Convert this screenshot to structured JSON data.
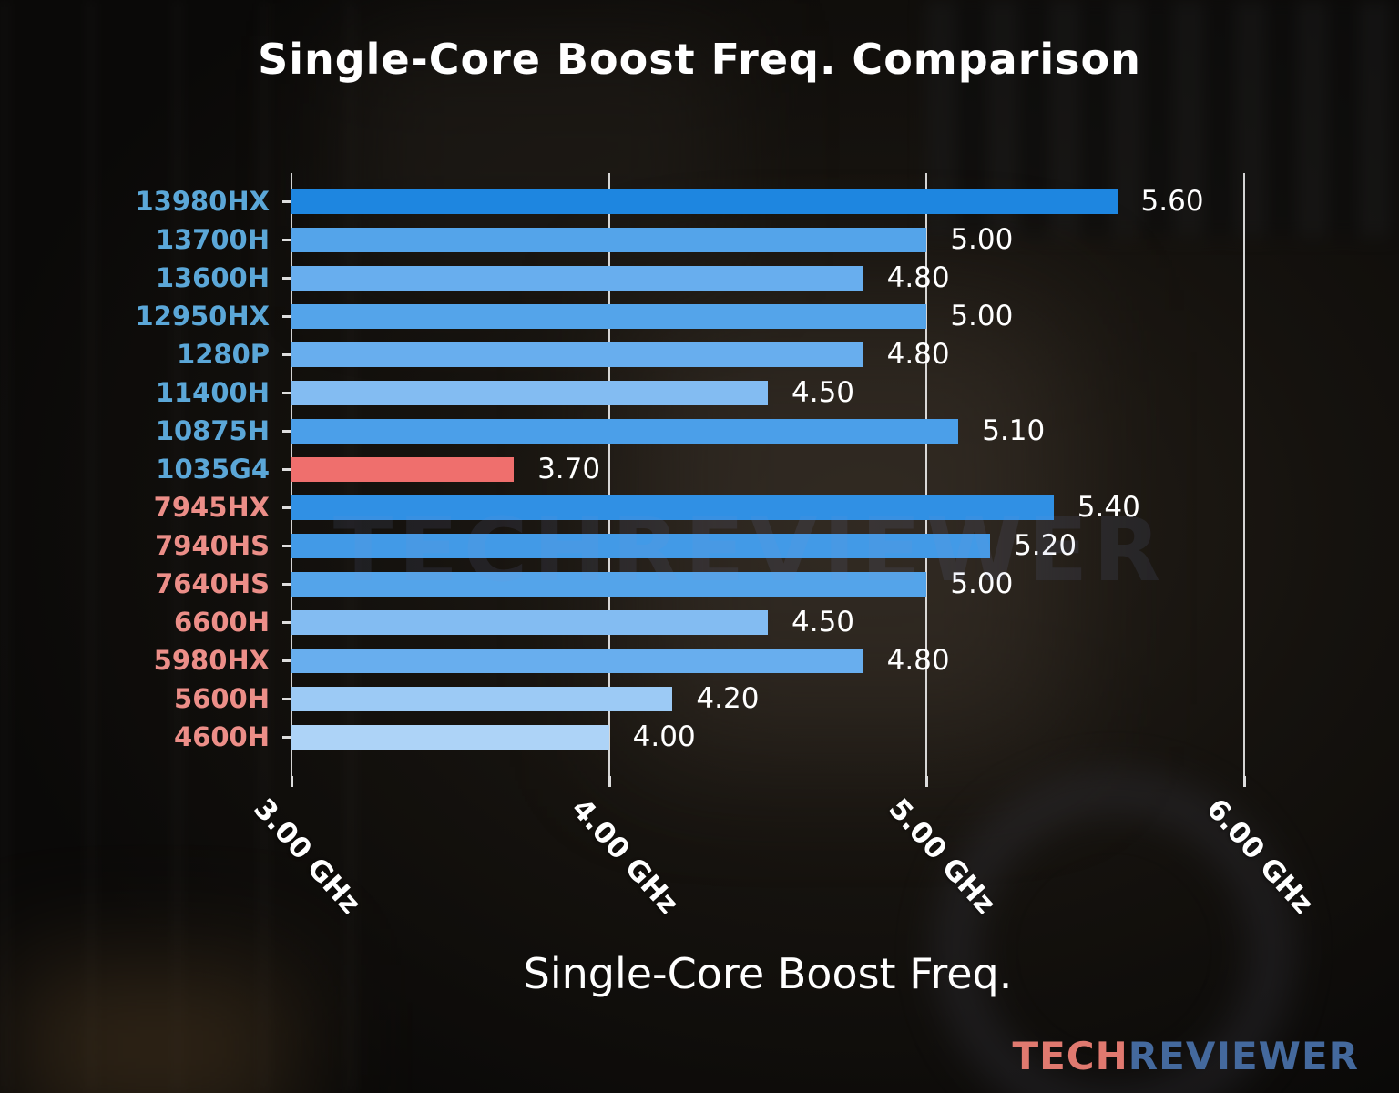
{
  "title": "Single-Core Boost Freq. Comparison",
  "watermark": "TECHREVIEWER",
  "logo": {
    "part1": "TECH",
    "part2": "REVIEWER",
    "part1_color": "#e0796f",
    "part2_color": "#44699d"
  },
  "colors": {
    "background": "#0c0b0a",
    "title": "#ffffff",
    "value_label": "#ffffff",
    "gridline": "rgba(255,255,255,0.82)",
    "intel_label": "#5ba7d8",
    "amd_label": "#ec8e88",
    "highlight_bar": "#ef6f6d"
  },
  "chart_data": {
    "type": "bar",
    "orientation": "horizontal",
    "title": "Single-Core Boost Freq. Comparison",
    "xlabel": "Single-Core Boost Freq.",
    "xlim": [
      3.0,
      6.0
    ],
    "grid": true,
    "unit": "GHz",
    "categories": [
      "13980HX",
      "13700H",
      "13600H",
      "12950HX",
      "1280P",
      "11400H",
      "10875H",
      "1035G4",
      "7945HX",
      "7940HS",
      "7640HS",
      "6600H",
      "5980HX",
      "5600H",
      "4600H"
    ],
    "values": [
      5.6,
      5.0,
      4.8,
      5.0,
      4.8,
      4.5,
      5.1,
      3.7,
      5.4,
      5.2,
      5.0,
      4.5,
      4.8,
      4.2,
      4.0
    ],
    "ticks": [
      {
        "value": 3.0,
        "label": "3.00 GHz"
      },
      {
        "value": 4.0,
        "label": "4.00 GHz"
      },
      {
        "value": 5.0,
        "label": "5.00 GHz"
      },
      {
        "value": 6.0,
        "label": "6.00 GHz"
      }
    ],
    "bars": [
      {
        "label": "13980HX",
        "value": 5.6,
        "display": "5.60",
        "vendor": "intel",
        "label_color": "#5ba7d8",
        "bar_color": "#1e86e0"
      },
      {
        "label": "13700H",
        "value": 5.0,
        "display": "5.00",
        "vendor": "intel",
        "label_color": "#5ba7d8",
        "bar_color": "#54a4ea"
      },
      {
        "label": "13600H",
        "value": 4.8,
        "display": "4.80",
        "vendor": "intel",
        "label_color": "#5ba7d8",
        "bar_color": "#68aeee"
      },
      {
        "label": "12950HX",
        "value": 5.0,
        "display": "5.00",
        "vendor": "intel",
        "label_color": "#5ba7d8",
        "bar_color": "#54a4ea"
      },
      {
        "label": "1280P",
        "value": 4.8,
        "display": "4.80",
        "vendor": "intel",
        "label_color": "#5ba7d8",
        "bar_color": "#68aeee"
      },
      {
        "label": "11400H",
        "value": 4.5,
        "display": "4.50",
        "vendor": "intel",
        "label_color": "#5ba7d8",
        "bar_color": "#83bcf2"
      },
      {
        "label": "10875H",
        "value": 5.1,
        "display": "5.10",
        "vendor": "intel",
        "label_color": "#5ba7d8",
        "bar_color": "#4b9fe9"
      },
      {
        "label": "1035G4",
        "value": 3.7,
        "display": "3.70",
        "vendor": "intel",
        "label_color": "#5ba7d8",
        "bar_color": "#ef6f6d"
      },
      {
        "label": "7945HX",
        "value": 5.4,
        "display": "5.40",
        "vendor": "amd",
        "label_color": "#ec8e88",
        "bar_color": "#3090e4"
      },
      {
        "label": "7940HS",
        "value": 5.2,
        "display": "5.20",
        "vendor": "amd",
        "label_color": "#ec8e88",
        "bar_color": "#429ae7"
      },
      {
        "label": "7640HS",
        "value": 5.0,
        "display": "5.00",
        "vendor": "amd",
        "label_color": "#ec8e88",
        "bar_color": "#54a4ea"
      },
      {
        "label": "6600H",
        "value": 4.5,
        "display": "4.50",
        "vendor": "amd",
        "label_color": "#ec8e88",
        "bar_color": "#83bcf2"
      },
      {
        "label": "5980HX",
        "value": 4.8,
        "display": "4.80",
        "vendor": "amd",
        "label_color": "#ec8e88",
        "bar_color": "#68aeee"
      },
      {
        "label": "5600H",
        "value": 4.2,
        "display": "4.20",
        "vendor": "amd",
        "label_color": "#ec8e88",
        "bar_color": "#9ccaf5"
      },
      {
        "label": "4600H",
        "value": 4.0,
        "display": "4.00",
        "vendor": "amd",
        "label_color": "#ec8e88",
        "bar_color": "#add3f7"
      }
    ]
  }
}
